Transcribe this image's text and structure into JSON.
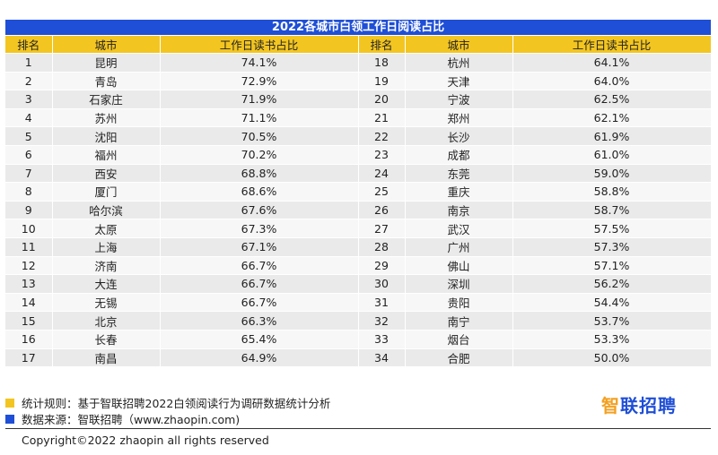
{
  "title": "2022各城市白领工作日阅读占比",
  "headers": [
    "排名",
    "城市",
    "工作日读书占比",
    "排名",
    "城市",
    "工作日读书占比"
  ],
  "colors": {
    "title_bg": "#1f4fd6",
    "header_bg": "#f3c520",
    "note_yellow": "#f3c520",
    "note_blue": "#1f4fd6"
  },
  "rows": [
    {
      "rank": "1",
      "city": "昆明",
      "share": "74.1%",
      "rank2": "18",
      "city2": "杭州",
      "share2": "64.1%"
    },
    {
      "rank": "2",
      "city": "青岛",
      "share": "72.9%",
      "rank2": "19",
      "city2": "天津",
      "share2": "64.0%"
    },
    {
      "rank": "3",
      "city": "石家庄",
      "share": "71.9%",
      "rank2": "20",
      "city2": "宁波",
      "share2": "62.5%"
    },
    {
      "rank": "4",
      "city": "苏州",
      "share": "71.1%",
      "rank2": "21",
      "city2": "郑州",
      "share2": "62.1%"
    },
    {
      "rank": "5",
      "city": "沈阳",
      "share": "70.5%",
      "rank2": "22",
      "city2": "长沙",
      "share2": "61.9%"
    },
    {
      "rank": "6",
      "city": "福州",
      "share": "70.2%",
      "rank2": "23",
      "city2": "成都",
      "share2": "61.0%"
    },
    {
      "rank": "7",
      "city": "西安",
      "share": "68.8%",
      "rank2": "24",
      "city2": "东莞",
      "share2": "59.0%"
    },
    {
      "rank": "8",
      "city": "厦门",
      "share": "68.6%",
      "rank2": "25",
      "city2": "重庆",
      "share2": "58.8%"
    },
    {
      "rank": "9",
      "city": "哈尔滨",
      "share": "67.6%",
      "rank2": "26",
      "city2": "南京",
      "share2": "58.7%"
    },
    {
      "rank": "10",
      "city": "太原",
      "share": "67.3%",
      "rank2": "27",
      "city2": "武汉",
      "share2": "57.5%"
    },
    {
      "rank": "11",
      "city": "上海",
      "share": "67.1%",
      "rank2": "28",
      "city2": "广州",
      "share2": "57.3%"
    },
    {
      "rank": "12",
      "city": "济南",
      "share": "66.7%",
      "rank2": "29",
      "city2": "佛山",
      "share2": "57.1%"
    },
    {
      "rank": "13",
      "city": "大连",
      "share": "66.7%",
      "rank2": "30",
      "city2": "深圳",
      "share2": "56.2%"
    },
    {
      "rank": "14",
      "city": "无锡",
      "share": "66.7%",
      "rank2": "31",
      "city2": "贵阳",
      "share2": "54.4%"
    },
    {
      "rank": "15",
      "city": "北京",
      "share": "66.3%",
      "rank2": "32",
      "city2": "南宁",
      "share2": "53.7%"
    },
    {
      "rank": "16",
      "city": "长春",
      "share": "65.4%",
      "rank2": "33",
      "city2": "烟台",
      "share2": "53.3%"
    },
    {
      "rank": "17",
      "city": "南昌",
      "share": "64.9%",
      "rank2": "34",
      "city2": "合肥",
      "share2": "50.0%"
    }
  ],
  "notes": {
    "method": "统计规则：基于智联招聘2022白领阅读行为调研数据统计分析",
    "source": "数据来源：智联招聘（www.zhaopin.com)"
  },
  "logo": {
    "first_char": "智",
    "rest": "联招聘"
  },
  "copyright": "Copyright©2022 zhaopin all rights reserved",
  "chart_data": {
    "type": "table",
    "title": "2022各城市白领工作日阅读占比",
    "columns": [
      "排名",
      "城市",
      "工作日读书占比"
    ],
    "unit": "%",
    "categories": [
      "昆明",
      "青岛",
      "石家庄",
      "苏州",
      "沈阳",
      "福州",
      "西安",
      "厦门",
      "哈尔滨",
      "太原",
      "上海",
      "济南",
      "大连",
      "无锡",
      "北京",
      "长春",
      "南昌",
      "杭州",
      "天津",
      "宁波",
      "郑州",
      "长沙",
      "成都",
      "东莞",
      "重庆",
      "南京",
      "武汉",
      "广州",
      "佛山",
      "深圳",
      "贵阳",
      "南宁",
      "烟台",
      "合肥"
    ],
    "values": [
      74.1,
      72.9,
      71.9,
      71.1,
      70.5,
      70.2,
      68.8,
      68.6,
      67.6,
      67.3,
      67.1,
      66.7,
      66.7,
      66.7,
      66.3,
      65.4,
      64.9,
      64.1,
      64.0,
      62.5,
      62.1,
      61.9,
      61.0,
      59.0,
      58.8,
      58.7,
      57.5,
      57.3,
      57.1,
      56.2,
      54.4,
      53.7,
      53.3,
      50.0
    ]
  }
}
